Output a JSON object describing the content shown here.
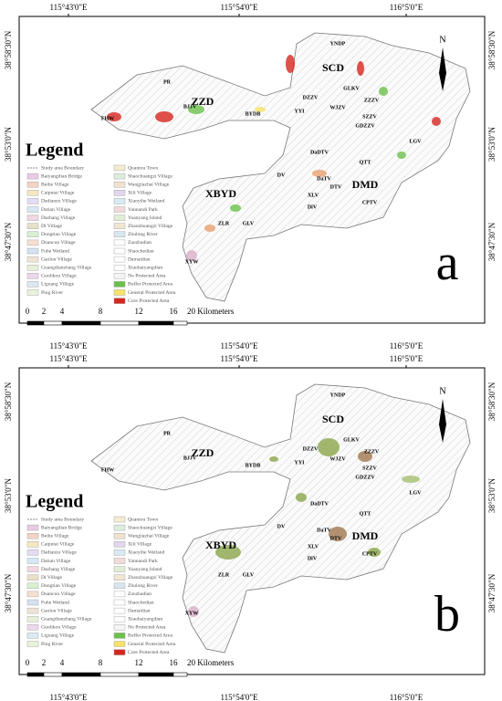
{
  "coordinates": {
    "top": [
      "115°43'0\"E",
      "115°54'0\"E",
      "116°5'0\"E"
    ],
    "side": [
      "38°58'30\"N",
      "38°53'0\"N",
      "38°47'30\"N"
    ]
  },
  "legend": {
    "title": "Legend",
    "items": [
      {
        "label": "Study area Boundary",
        "color": "#888888"
      },
      {
        "label": "Baiyangdian Bridge",
        "color": "#e9c9e6"
      },
      {
        "label": "Beihe Village",
        "color": "#f3d3c4"
      },
      {
        "label": "Caiputai Village",
        "color": "#f6e7c1"
      },
      {
        "label": "Dadianzo Village",
        "color": "#e4dcf2"
      },
      {
        "label": "Datian Village",
        "color": "#d6e8f5"
      },
      {
        "label": "Dazhang Village",
        "color": "#f2d6e1"
      },
      {
        "label": "Di Village",
        "color": "#e9e0c8"
      },
      {
        "label": "Dongtian Village",
        "color": "#d9f0d3"
      },
      {
        "label": "Duancun Village",
        "color": "#f7dfd0"
      },
      {
        "label": "Fuhe Wetland",
        "color": "#d5e3f0"
      },
      {
        "label": "Gaolou Village",
        "color": "#efe3d6"
      },
      {
        "label": "Guangdianzhang Village",
        "color": "#e6f0d8"
      },
      {
        "label": "Guolikou Village",
        "color": "#ecd8ec"
      },
      {
        "label": "Liguang Village",
        "color": "#dbe9f2"
      },
      {
        "label": "Ping River",
        "color": "#e8f3d9"
      },
      {
        "label": "Quantou Town",
        "color": "#f4ecd0"
      },
      {
        "label": "Shaochuangzi Village",
        "color": "#dcedde"
      },
      {
        "label": "Wangjiazhai Village",
        "color": "#f0e2cf"
      },
      {
        "label": "Xili Village",
        "color": "#e3d6ee"
      },
      {
        "label": "Xiaoyihe Wetland",
        "color": "#d9eaf3"
      },
      {
        "label": "Yannandi Park",
        "color": "#f3dbdb"
      },
      {
        "label": "Yuanyang Island",
        "color": "#e1eed6"
      },
      {
        "label": "Zhaozhuangzi Village",
        "color": "#f0e6d3"
      },
      {
        "label": "Zhulong River",
        "color": "#d8e6f0"
      },
      {
        "label": "Zaozhadian",
        "color": "#ffffff"
      },
      {
        "label": "Shaochedian",
        "color": "#ffffff"
      },
      {
        "label": "Damaidian",
        "color": "#ffffff"
      },
      {
        "label": "Xiaobaiyangdian",
        "color": "#ffffff"
      },
      {
        "label": "No Protected Area",
        "color": "#f4f4f4"
      },
      {
        "label": "Buffer Protected Area",
        "color": "#6cc04a"
      },
      {
        "label": "General Protected Area",
        "color": "#f5e36a"
      },
      {
        "label": "Core Protected Area",
        "color": "#d7261e"
      }
    ]
  },
  "place_labels": [
    "YNDP",
    "SCD",
    "PR",
    "ZZD",
    "BJJV",
    "FHW",
    "BYDB",
    "DZZV",
    "GLKV",
    "ZZZV",
    "YYI",
    "WJZV",
    "SZZV",
    "GDZZV",
    "LGV",
    "DaDTV",
    "QTT",
    "DV",
    "DaTV",
    "DTV",
    "DMD",
    "XBYD",
    "XLV",
    "CPTV",
    "DiV",
    "ZLR",
    "GLV",
    "XYW"
  ],
  "scale_bar": [
    "0",
    "2",
    "4",
    "8",
    "12",
    "16",
    "20 Kilometers"
  ],
  "north": "N",
  "panels": [
    {
      "label": "a"
    },
    {
      "label": "b"
    }
  ]
}
